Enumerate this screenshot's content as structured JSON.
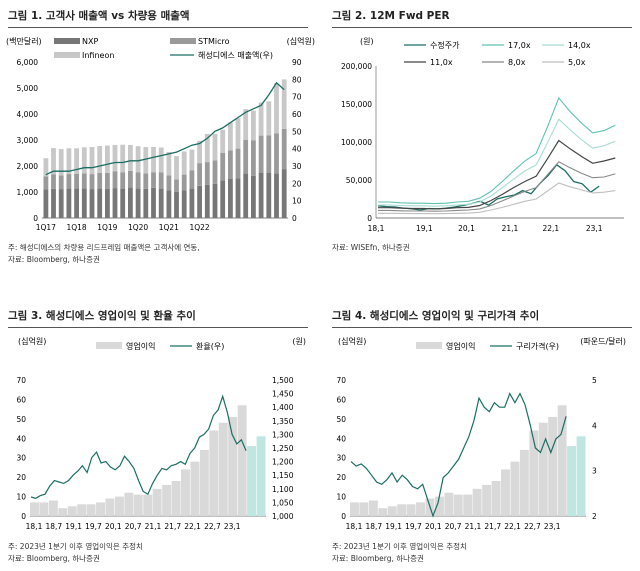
{
  "panels": [
    {
      "title": "그림 1. 고객사 매출액 vs 차량용 매출액",
      "notes": [
        "주: 해성디에스의 차량용 리드프레임 매출액은 고객사에 연동,",
        "자료: Bloomberg, 하나증권"
      ]
    },
    {
      "title": "그림 2. 12M Fwd PER",
      "notes": [
        "자료: WISEfn, 하나증권"
      ]
    },
    {
      "title": "그림 3. 해성디에스 영업이익 및 환율 추이",
      "notes": [
        "주: 2023년 1분기 이후 영업이익은 추정치",
        "자료: Bloomberg, 하나증권"
      ]
    },
    {
      "title": "그림 4. 해성디에스 영업이익 및 구리가격 추이",
      "notes": [
        "주: 2023년 1분기 이후 영업이익은 추정치",
        "자료: Bloomberg, 하나증권"
      ]
    }
  ],
  "colors": {
    "nxp": "#777777",
    "stmicro": "#9a9a9a",
    "infineon": "#c8c8c8",
    "line": "#1a6e63",
    "bar": "#d9d9d9",
    "est": "#bfe6e0"
  },
  "chart_data": [
    {
      "type": "bar",
      "stacked": true,
      "left_unit": "(백만달러)",
      "right_unit": "(십억원)",
      "x_ticks": [
        "1Q17",
        "1Q18",
        "1Q19",
        "1Q20",
        "1Q21",
        "1Q22"
      ],
      "ylim": [
        0,
        6000
      ],
      "y_ticks": [
        0,
        1000,
        2000,
        3000,
        4000,
        5000,
        6000
      ],
      "y2lim": [
        0,
        90
      ],
      "y2_ticks": [
        0,
        10,
        20,
        30,
        40,
        50,
        60,
        70,
        80,
        90
      ],
      "series": [
        {
          "name": "NXP",
          "values": [
            1100,
            1120,
            1110,
            1130,
            1130,
            1140,
            1110,
            1130,
            1120,
            1150,
            1140,
            1170,
            1130,
            1120,
            1160,
            1130,
            1070,
            1010,
            1070,
            1130,
            1240,
            1280,
            1320,
            1450,
            1500,
            1530,
            1720,
            1620,
            1730,
            1730,
            1720,
            1880
          ]
        },
        {
          "name": "STMicro",
          "values": [
            500,
            560,
            530,
            560,
            570,
            580,
            580,
            600,
            620,
            650,
            620,
            640,
            620,
            600,
            600,
            620,
            570,
            480,
            600,
            710,
            870,
            870,
            900,
            1050,
            1100,
            1140,
            1290,
            1360,
            1440,
            1450,
            1530,
            1550
          ]
        },
        {
          "name": "Infineon",
          "values": [
            700,
            1010,
            1010,
            990,
            980,
            1000,
            1040,
            1040,
            1050,
            1010,
            1060,
            1000,
            1010,
            1010,
            970,
            960,
            900,
            890,
            890,
            790,
            860,
            1080,
            1020,
            900,
            1070,
            1170,
            1180,
            1150,
            1270,
            1310,
            1930,
            1900
          ]
        },
        {
          "name": "해성디에스 매출액(우)",
          "axis": "right",
          "values": [
            25,
            27,
            27,
            27,
            28,
            29,
            29,
            30,
            31,
            32,
            32,
            33,
            33,
            34,
            35,
            36,
            37,
            38,
            40,
            42,
            43,
            46,
            50,
            52,
            55,
            58,
            61,
            63,
            65,
            71,
            78,
            74
          ]
        }
      ]
    },
    {
      "type": "line",
      "unit": "(원)",
      "x_ticks": [
        "18,1",
        "19,1",
        "20,1",
        "21,1",
        "22,1",
        "23,1"
      ],
      "ylim": [
        0,
        200000
      ],
      "y_ticks": [
        "0",
        "50,000",
        "100,000",
        "150,000",
        "200,000"
      ],
      "series": [
        {
          "name": "수정주가",
          "values": [
            16000,
            15000,
            14500,
            13000,
            12000,
            10500,
            12500,
            12000,
            13000,
            14500,
            16500,
            19000,
            22000,
            17000,
            25000,
            28000,
            30000,
            36000,
            32000,
            45000,
            56000,
            70000,
            62000,
            48000,
            45000,
            34000,
            42000
          ]
        },
        {
          "name": "17,0x",
          "values": [
            21000,
            21000,
            20000,
            19500,
            19500,
            19000,
            19500,
            21000,
            22000,
            26000,
            35000,
            48000,
            62000,
            75000,
            85000,
            120000,
            158000,
            140000,
            125000,
            112000,
            115000,
            122000
          ]
        },
        {
          "name": "14,0x",
          "values": [
            17000,
            17000,
            16500,
            16000,
            16000,
            15500,
            16000,
            17000,
            18000,
            21000,
            29000,
            40000,
            51000,
            62000,
            70000,
            99000,
            130000,
            116000,
            103000,
            92000,
            95000,
            101000
          ]
        },
        {
          "name": "11,0x",
          "values": [
            13500,
            13500,
            13000,
            12500,
            12500,
            12000,
            12500,
            13500,
            14000,
            16500,
            23000,
            31000,
            40000,
            48000,
            55000,
            78000,
            102000,
            91000,
            81000,
            72000,
            75000,
            79000
          ]
        },
        {
          "name": "8,0x",
          "values": [
            10000,
            10000,
            9500,
            9200,
            9200,
            9000,
            9200,
            10000,
            10500,
            12000,
            16500,
            22500,
            29000,
            35000,
            40000,
            57000,
            74000,
            66000,
            59000,
            53000,
            54000,
            58000
          ]
        },
        {
          "name": "5,0x",
          "values": [
            6200,
            6200,
            6000,
            5800,
            5800,
            5600,
            5800,
            6200,
            6500,
            7500,
            10500,
            14000,
            18000,
            22000,
            25000,
            35500,
            46000,
            41000,
            37000,
            33000,
            34000,
            36000
          ]
        }
      ]
    },
    {
      "type": "bar",
      "left_unit": "(십억원)",
      "right_unit": "(원)",
      "x_ticks": [
        "18,1",
        "18,7",
        "19,1",
        "19,7",
        "20,1",
        "20,7",
        "21,1",
        "21,7",
        "22,1",
        "22,7",
        "23,1"
      ],
      "ylim": [
        0,
        70
      ],
      "y_ticks": [
        0,
        10,
        20,
        30,
        40,
        50,
        60,
        70
      ],
      "y2lim": [
        1000,
        1500
      ],
      "y2_ticks": [
        "1,000",
        "1,050",
        "1,100",
        "1,150",
        "1,200",
        "1,250",
        "1,300",
        "1,350",
        "1,400",
        "1,450",
        "1,500"
      ],
      "series": [
        {
          "name": "영업이익",
          "values": [
            7,
            7,
            8,
            4,
            5,
            6,
            6,
            7,
            9,
            10,
            12,
            11,
            11,
            14,
            16,
            18,
            24,
            28,
            34,
            44,
            48,
            51,
            57,
            36,
            41
          ],
          "estimated_from_index": 23
        },
        {
          "name": "환율(우)",
          "axis": "right",
          "values": [
            1070,
            1065,
            1075,
            1080,
            1110,
            1130,
            1125,
            1120,
            1130,
            1150,
            1165,
            1185,
            1160,
            1215,
            1235,
            1195,
            1200,
            1180,
            1170,
            1185,
            1220,
            1200,
            1175,
            1130,
            1090,
            1080,
            1120,
            1150,
            1175,
            1170,
            1185,
            1190,
            1200,
            1190,
            1230,
            1250,
            1290,
            1300,
            1320,
            1370,
            1390,
            1440,
            1380,
            1300,
            1265,
            1280,
            1240
          ]
        }
      ]
    },
    {
      "type": "bar",
      "left_unit": "(십억원)",
      "right_unit": "(파운드/달러)",
      "x_ticks": [
        "18,1",
        "18,7",
        "19,1",
        "19,7",
        "20,1",
        "20,7",
        "21,1",
        "21,7",
        "22,1",
        "22,7",
        "23,1"
      ],
      "ylim": [
        0,
        70
      ],
      "y_ticks": [
        0,
        10,
        20,
        30,
        40,
        50,
        60,
        70
      ],
      "y2lim": [
        2,
        5
      ],
      "y2_ticks": [
        2,
        3,
        4,
        5
      ],
      "series": [
        {
          "name": "영업이익",
          "values": [
            7,
            7,
            8,
            4,
            5,
            6,
            6,
            7,
            9,
            10,
            12,
            11,
            11,
            14,
            16,
            18,
            24,
            28,
            34,
            44,
            48,
            51,
            57,
            36,
            41
          ],
          "estimated_from_index": 23
        },
        {
          "name": "구리가격(우)",
          "axis": "right",
          "values": [
            3.2,
            3.1,
            3.15,
            3.05,
            2.9,
            2.75,
            2.7,
            2.8,
            2.95,
            2.75,
            2.9,
            2.8,
            2.65,
            2.6,
            2.7,
            2.35,
            2.0,
            2.3,
            2.85,
            2.95,
            3.1,
            3.25,
            3.5,
            3.75,
            4.1,
            4.6,
            4.4,
            4.3,
            4.5,
            4.4,
            4.4,
            4.7,
            4.5,
            4.7,
            4.45,
            4.0,
            3.5,
            3.4,
            3.7,
            3.4,
            3.7,
            3.8,
            4.2
          ]
        }
      ]
    }
  ]
}
